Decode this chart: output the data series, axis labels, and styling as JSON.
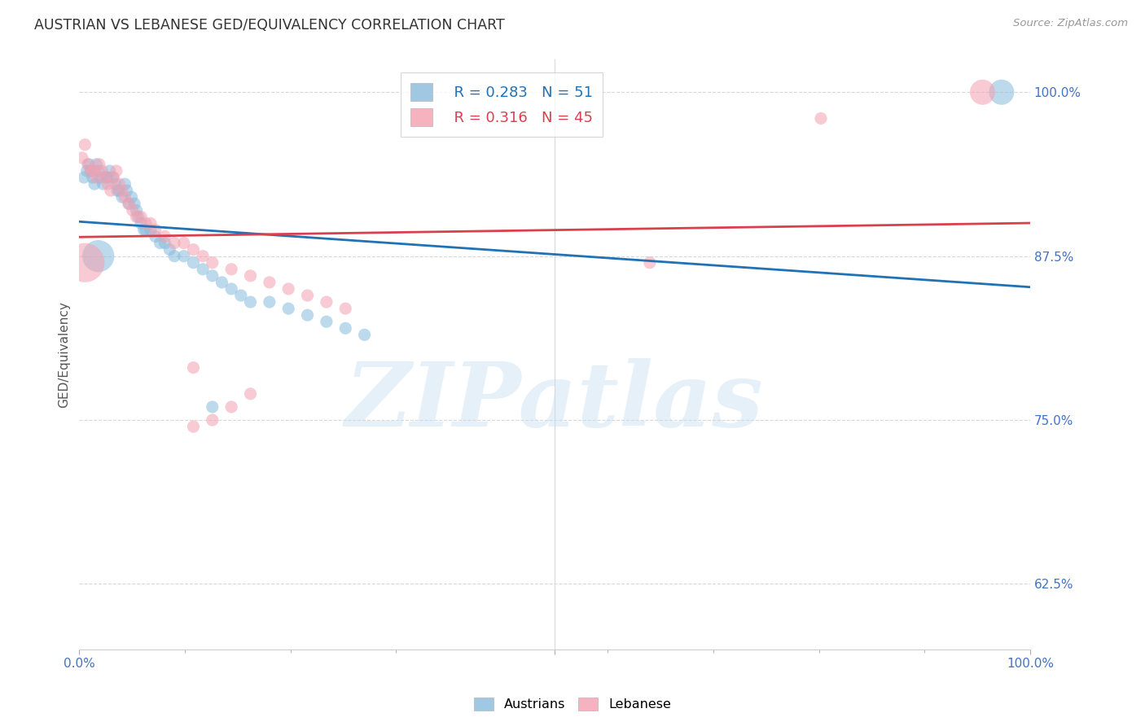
{
  "title": "AUSTRIAN VS LEBANESE GED/EQUIVALENCY CORRELATION CHART",
  "source": "Source: ZipAtlas.com",
  "ylabel": "GED/Equivalency",
  "xlim": [
    0.0,
    1.0
  ],
  "ylim": [
    0.575,
    1.025
  ],
  "yticks": [
    0.625,
    0.75,
    0.875,
    1.0
  ],
  "ytick_labels": [
    "62.5%",
    "75.0%",
    "87.5%",
    "100.0%"
  ],
  "austrians_x": [
    0.005,
    0.008,
    0.01,
    0.012,
    0.014,
    0.016,
    0.018,
    0.02,
    0.022,
    0.025,
    0.028,
    0.03,
    0.032,
    0.035,
    0.038,
    0.04,
    0.042,
    0.045,
    0.048,
    0.05,
    0.052,
    0.055,
    0.058,
    0.06,
    0.062,
    0.065,
    0.068,
    0.07,
    0.075,
    0.08,
    0.085,
    0.09,
    0.095,
    0.1,
    0.11,
    0.12,
    0.13,
    0.14,
    0.15,
    0.16,
    0.17,
    0.18,
    0.2,
    0.22,
    0.24,
    0.26,
    0.28,
    0.3,
    0.14,
    0.02,
    0.97
  ],
  "austrians_y": [
    0.935,
    0.94,
    0.945,
    0.94,
    0.935,
    0.93,
    0.945,
    0.94,
    0.935,
    0.93,
    0.935,
    0.935,
    0.94,
    0.935,
    0.93,
    0.925,
    0.925,
    0.92,
    0.93,
    0.925,
    0.915,
    0.92,
    0.915,
    0.91,
    0.905,
    0.9,
    0.895,
    0.895,
    0.895,
    0.89,
    0.885,
    0.885,
    0.88,
    0.875,
    0.875,
    0.87,
    0.865,
    0.86,
    0.855,
    0.85,
    0.845,
    0.84,
    0.84,
    0.835,
    0.83,
    0.825,
    0.82,
    0.815,
    0.76,
    0.875,
    1.0
  ],
  "austrians_size": [
    120,
    120,
    120,
    120,
    120,
    120,
    120,
    120,
    120,
    120,
    120,
    120,
    120,
    120,
    120,
    120,
    120,
    120,
    120,
    120,
    120,
    120,
    120,
    120,
    120,
    120,
    120,
    120,
    120,
    120,
    120,
    120,
    120,
    120,
    120,
    120,
    120,
    120,
    120,
    120,
    120,
    120,
    120,
    120,
    120,
    120,
    120,
    120,
    120,
    800,
    500
  ],
  "lebanese_x": [
    0.003,
    0.006,
    0.009,
    0.012,
    0.015,
    0.018,
    0.021,
    0.024,
    0.027,
    0.03,
    0.033,
    0.036,
    0.039,
    0.042,
    0.045,
    0.048,
    0.052,
    0.056,
    0.06,
    0.065,
    0.07,
    0.075,
    0.08,
    0.09,
    0.1,
    0.11,
    0.12,
    0.13,
    0.14,
    0.16,
    0.18,
    0.2,
    0.22,
    0.24,
    0.26,
    0.28,
    0.12,
    0.18,
    0.16,
    0.14,
    0.12,
    0.6,
    0.78,
    0.006,
    0.95
  ],
  "lebanese_y": [
    0.95,
    0.96,
    0.945,
    0.94,
    0.94,
    0.935,
    0.945,
    0.94,
    0.935,
    0.93,
    0.925,
    0.935,
    0.94,
    0.93,
    0.925,
    0.92,
    0.915,
    0.91,
    0.905,
    0.905,
    0.9,
    0.9,
    0.895,
    0.89,
    0.885,
    0.885,
    0.88,
    0.875,
    0.87,
    0.865,
    0.86,
    0.855,
    0.85,
    0.845,
    0.84,
    0.835,
    0.79,
    0.77,
    0.76,
    0.75,
    0.745,
    0.87,
    0.98,
    0.87,
    1.0
  ],
  "lebanese_size": [
    120,
    120,
    120,
    120,
    120,
    120,
    120,
    120,
    120,
    120,
    120,
    120,
    120,
    120,
    120,
    120,
    120,
    120,
    120,
    120,
    120,
    120,
    120,
    120,
    120,
    120,
    120,
    120,
    120,
    120,
    120,
    120,
    120,
    120,
    120,
    120,
    120,
    120,
    120,
    120,
    120,
    120,
    120,
    1200,
    500
  ],
  "austrian_color": "#88bbdd",
  "lebanese_color": "#f4a0b0",
  "austrian_line_color": "#2171b5",
  "lebanese_line_color": "#d9404e",
  "R_austrian": 0.283,
  "N_austrian": 51,
  "R_lebanese": 0.316,
  "N_lebanese": 45,
  "background_color": "#ffffff",
  "grid_color": "#d8d8d8",
  "title_color": "#333333",
  "axis_color": "#4472C4",
  "watermark": "ZIPatlas"
}
